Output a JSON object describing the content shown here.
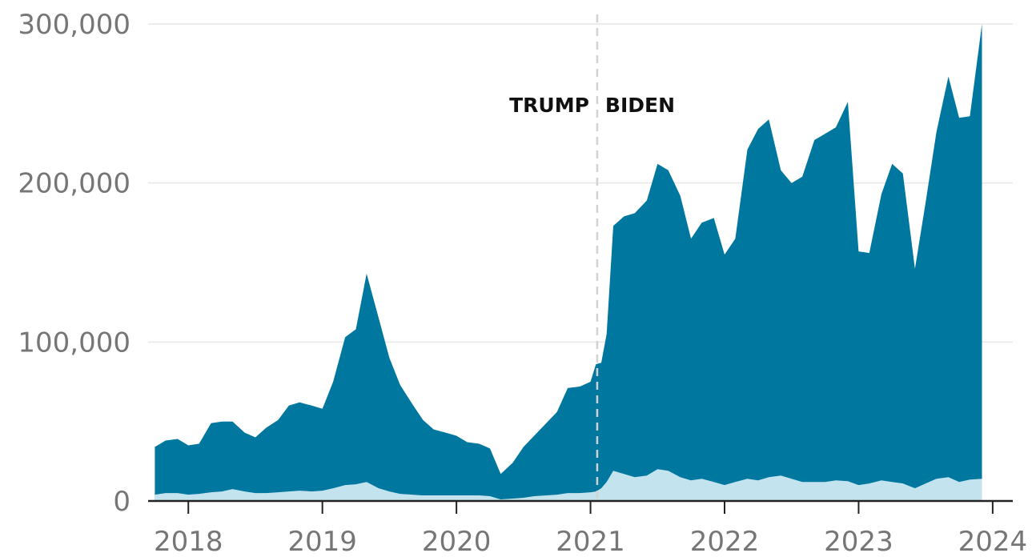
{
  "chart_data": {
    "type": "area",
    "stacked": true,
    "title": "",
    "xlabel": "",
    "ylabel": "",
    "ylim": [
      0,
      300000
    ],
    "xlim": [
      2017.7,
      2024.15
    ],
    "y_ticks": [
      0,
      100000,
      200000,
      300000
    ],
    "y_tick_labels": [
      "0",
      "100,000",
      "200,000",
      "300,000"
    ],
    "x_ticks": [
      2018,
      2019,
      2020,
      2021,
      2022,
      2023,
      2024
    ],
    "x_tick_labels": [
      "2018",
      "2019",
      "2020",
      "2021",
      "2022",
      "2023",
      "2024"
    ],
    "grid": true,
    "colors": {
      "total": "#00779e",
      "lower": "#c3e4ee",
      "baseline": "#222222",
      "grid": "#e6e6e6",
      "divider": "#d2d2d2"
    },
    "divider": {
      "x": 2021.05,
      "left_label": "TRUMP",
      "right_label": "BIDEN"
    },
    "series": [
      {
        "layer": "total",
        "points": [
          [
            2017.75,
            34000
          ],
          [
            2017.83,
            38000
          ],
          [
            2017.92,
            39000
          ],
          [
            2018.0,
            35000
          ],
          [
            2018.08,
            36000
          ],
          [
            2018.17,
            49000
          ],
          [
            2018.25,
            50000
          ],
          [
            2018.33,
            50000
          ],
          [
            2018.42,
            43000
          ],
          [
            2018.5,
            40000
          ],
          [
            2018.58,
            46000
          ],
          [
            2018.67,
            51000
          ],
          [
            2018.75,
            60000
          ],
          [
            2018.83,
            62000
          ],
          [
            2018.92,
            60000
          ],
          [
            2019.0,
            58000
          ],
          [
            2019.08,
            75000
          ],
          [
            2019.17,
            103000
          ],
          [
            2019.25,
            108000
          ],
          [
            2019.33,
            143000
          ],
          [
            2019.42,
            115000
          ],
          [
            2019.5,
            90000
          ],
          [
            2019.58,
            73000
          ],
          [
            2019.67,
            61000
          ],
          [
            2019.75,
            51000
          ],
          [
            2019.83,
            45000
          ],
          [
            2019.92,
            43000
          ],
          [
            2020.0,
            41000
          ],
          [
            2020.08,
            37000
          ],
          [
            2020.17,
            36000
          ],
          [
            2020.25,
            33000
          ],
          [
            2020.33,
            17000
          ],
          [
            2020.42,
            24000
          ],
          [
            2020.5,
            34000
          ],
          [
            2020.58,
            41000
          ],
          [
            2020.67,
            49000
          ],
          [
            2020.75,
            56000
          ],
          [
            2020.83,
            71000
          ],
          [
            2020.92,
            72000
          ],
          [
            2021.0,
            75000
          ],
          [
            2021.04,
            86000
          ],
          [
            2021.08,
            87000
          ],
          [
            2021.12,
            105000
          ],
          [
            2021.17,
            173000
          ],
          [
            2021.25,
            179000
          ],
          [
            2021.33,
            181000
          ],
          [
            2021.42,
            189000
          ],
          [
            2021.5,
            212000
          ],
          [
            2021.58,
            208000
          ],
          [
            2021.67,
            192000
          ],
          [
            2021.75,
            165000
          ],
          [
            2021.83,
            175000
          ],
          [
            2021.92,
            178000
          ],
          [
            2022.0,
            155000
          ],
          [
            2022.08,
            165000
          ],
          [
            2022.17,
            221000
          ],
          [
            2022.25,
            234000
          ],
          [
            2022.33,
            240000
          ],
          [
            2022.42,
            208000
          ],
          [
            2022.5,
            200000
          ],
          [
            2022.58,
            204000
          ],
          [
            2022.67,
            227000
          ],
          [
            2022.75,
            231000
          ],
          [
            2022.83,
            235000
          ],
          [
            2022.92,
            251000
          ],
          [
            2023.0,
            157000
          ],
          [
            2023.08,
            156000
          ],
          [
            2023.17,
            193000
          ],
          [
            2023.25,
            212000
          ],
          [
            2023.33,
            206000
          ],
          [
            2023.42,
            146000
          ],
          [
            2023.5,
            188000
          ],
          [
            2023.58,
            232000
          ],
          [
            2023.67,
            267000
          ],
          [
            2023.75,
            241000
          ],
          [
            2023.83,
            242000
          ],
          [
            2023.92,
            300000
          ]
        ]
      },
      {
        "layer": "lower",
        "points": [
          [
            2017.75,
            4000
          ],
          [
            2017.83,
            5000
          ],
          [
            2017.92,
            5000
          ],
          [
            2018.0,
            4000
          ],
          [
            2018.08,
            4500
          ],
          [
            2018.17,
            5500
          ],
          [
            2018.25,
            6000
          ],
          [
            2018.33,
            7500
          ],
          [
            2018.42,
            6000
          ],
          [
            2018.5,
            5000
          ],
          [
            2018.58,
            5000
          ],
          [
            2018.67,
            5500
          ],
          [
            2018.75,
            6000
          ],
          [
            2018.83,
            6500
          ],
          [
            2018.92,
            6000
          ],
          [
            2019.0,
            6500
          ],
          [
            2019.08,
            8000
          ],
          [
            2019.17,
            10000
          ],
          [
            2019.25,
            10500
          ],
          [
            2019.33,
            12000
          ],
          [
            2019.42,
            8000
          ],
          [
            2019.5,
            6000
          ],
          [
            2019.58,
            4500
          ],
          [
            2019.67,
            4000
          ],
          [
            2019.75,
            3500
          ],
          [
            2019.83,
            3500
          ],
          [
            2019.92,
            3500
          ],
          [
            2020.0,
            3500
          ],
          [
            2020.08,
            3500
          ],
          [
            2020.17,
            3500
          ],
          [
            2020.25,
            3000
          ],
          [
            2020.33,
            1000
          ],
          [
            2020.42,
            1500
          ],
          [
            2020.5,
            2000
          ],
          [
            2020.58,
            3000
          ],
          [
            2020.67,
            3500
          ],
          [
            2020.75,
            4000
          ],
          [
            2020.83,
            5000
          ],
          [
            2020.92,
            5000
          ],
          [
            2021.0,
            5500
          ],
          [
            2021.04,
            6000
          ],
          [
            2021.08,
            8000
          ],
          [
            2021.12,
            12000
          ],
          [
            2021.17,
            19000
          ],
          [
            2021.25,
            17000
          ],
          [
            2021.33,
            15000
          ],
          [
            2021.42,
            16000
          ],
          [
            2021.5,
            20000
          ],
          [
            2021.58,
            19000
          ],
          [
            2021.67,
            15000
          ],
          [
            2021.75,
            13000
          ],
          [
            2021.83,
            14000
          ],
          [
            2021.92,
            12000
          ],
          [
            2022.0,
            10000
          ],
          [
            2022.08,
            12000
          ],
          [
            2022.17,
            14000
          ],
          [
            2022.25,
            13000
          ],
          [
            2022.33,
            15000
          ],
          [
            2022.42,
            16000
          ],
          [
            2022.5,
            14000
          ],
          [
            2022.58,
            12000
          ],
          [
            2022.67,
            12000
          ],
          [
            2022.75,
            12000
          ],
          [
            2022.83,
            13000
          ],
          [
            2022.92,
            12500
          ],
          [
            2023.0,
            10000
          ],
          [
            2023.08,
            11000
          ],
          [
            2023.17,
            13000
          ],
          [
            2023.25,
            12000
          ],
          [
            2023.33,
            11000
          ],
          [
            2023.42,
            8000
          ],
          [
            2023.5,
            11000
          ],
          [
            2023.58,
            14000
          ],
          [
            2023.67,
            15000
          ],
          [
            2023.75,
            12000
          ],
          [
            2023.83,
            13500
          ],
          [
            2023.92,
            14000
          ]
        ]
      }
    ]
  }
}
